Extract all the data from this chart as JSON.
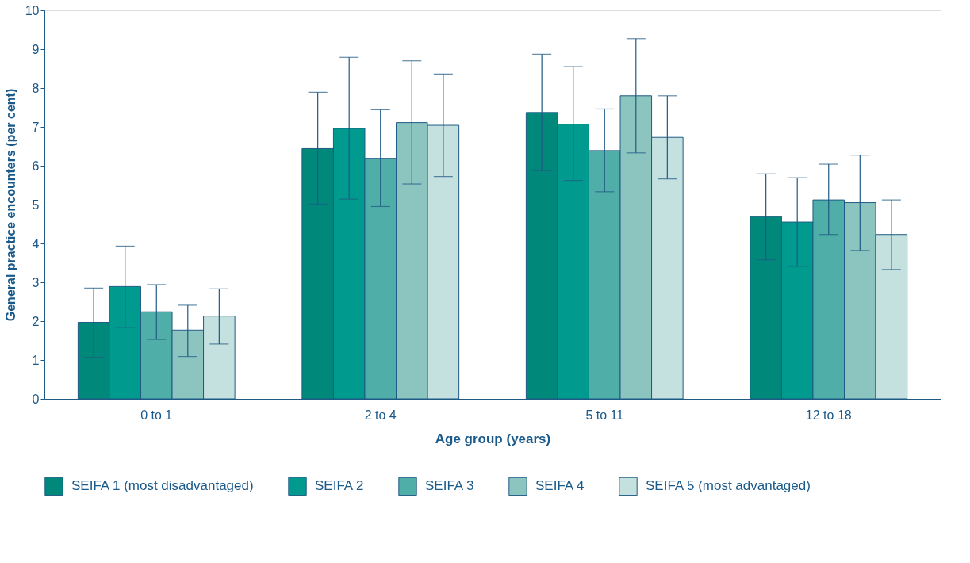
{
  "chart_data": {
    "type": "bar",
    "xlabel": "Age group (years)",
    "ylabel": "General practice encounters (per cent)",
    "categories": [
      "0 to 1",
      "2 to 4",
      "5 to 11",
      "12 to 18"
    ],
    "ylim": [
      0,
      10
    ],
    "yticks": [
      0,
      1,
      2,
      3,
      4,
      5,
      6,
      7,
      8,
      9,
      10
    ],
    "grid": false,
    "legend": "bottom",
    "series": [
      {
        "name": "SEIFA 1 (most disadvantaged)",
        "color": "#00897a",
        "values": [
          1.97,
          6.44,
          7.37,
          4.69
        ],
        "errors": [
          [
            1.07,
            2.85
          ],
          [
            5.01,
            7.89
          ],
          [
            5.87,
            8.87
          ],
          [
            3.58,
            5.79
          ]
        ]
      },
      {
        "name": "SEIFA 2",
        "color": "#009b8e",
        "values": [
          2.89,
          6.96,
          7.07,
          4.55
        ],
        "errors": [
          [
            1.84,
            3.93
          ],
          [
            5.14,
            8.79
          ],
          [
            5.62,
            8.55
          ],
          [
            3.41,
            5.69
          ]
        ]
      },
      {
        "name": "SEIFA 3",
        "color": "#4faea8",
        "values": [
          2.24,
          6.19,
          6.39,
          5.12
        ],
        "errors": [
          [
            1.53,
            2.94
          ],
          [
            4.95,
            7.44
          ],
          [
            5.33,
            7.46
          ],
          [
            4.23,
            6.04
          ]
        ]
      },
      {
        "name": "SEIFA 4",
        "color": "#8cc5bf",
        "values": [
          1.77,
          7.11,
          7.8,
          5.05
        ],
        "errors": [
          [
            1.09,
            2.41
          ],
          [
            5.53,
            8.7
          ],
          [
            6.33,
            9.27
          ],
          [
            3.82,
            6.27
          ]
        ]
      },
      {
        "name": "SEIFA 5 (most advantaged)",
        "color": "#c5e1df",
        "values": [
          2.13,
          7.04,
          6.73,
          4.23
        ],
        "errors": [
          [
            1.41,
            2.83
          ],
          [
            5.72,
            8.36
          ],
          [
            5.66,
            7.8
          ],
          [
            3.33,
            5.12
          ]
        ]
      }
    ]
  }
}
